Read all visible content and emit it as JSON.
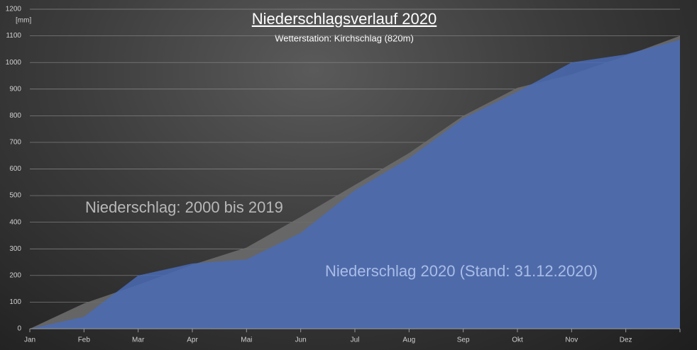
{
  "chart_data": {
    "type": "area",
    "title": "Niederschlagsverlauf 2020",
    "subtitle": "Wetterstation: Kirchschlag (820m)",
    "y_axis_label": "[mm]",
    "categories": [
      "Jan",
      "Feb",
      "Mar",
      "Apr",
      "Mai",
      "Jun",
      "Jul",
      "Aug",
      "Sep",
      "Okt",
      "Nov",
      "Dez",
      null
    ],
    "series": [
      {
        "name": "Niederschlag: 2000 bis 2019",
        "color": "#6b6b6b",
        "values": [
          0,
          95,
          165,
          240,
          305,
          420,
          540,
          660,
          800,
          905,
          955,
          1025,
          1100
        ]
      },
      {
        "name": "Niederschlag 2020 (Stand: 31.12.2020)",
        "color": "#4a6bb5",
        "values": [
          0,
          45,
          200,
          245,
          260,
          360,
          520,
          640,
          790,
          890,
          1000,
          1030,
          1085
        ]
      }
    ],
    "ylim": [
      0,
      1200
    ],
    "yticks": [
      0,
      100,
      200,
      300,
      400,
      500,
      600,
      700,
      800,
      900,
      1000,
      1100,
      1200
    ],
    "grid": true
  }
}
